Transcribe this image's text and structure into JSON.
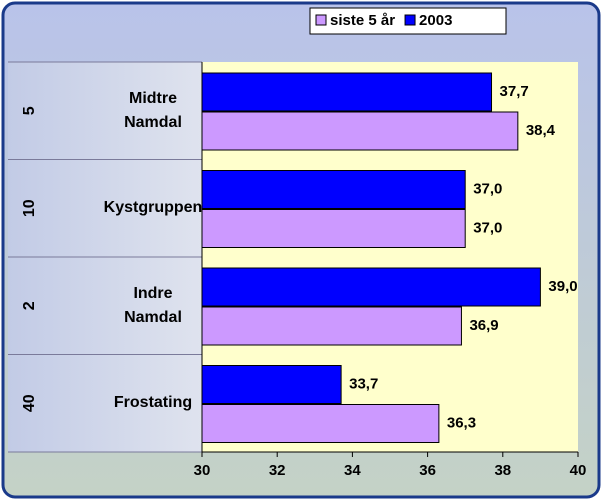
{
  "chart_data": {
    "type": "bar",
    "orientation": "horizontal",
    "categories": [
      "Midtre\nNamdal",
      "Kystgruppen",
      "Indre\nNamdal",
      "Frostating"
    ],
    "rank_labels": [
      "5",
      "10",
      "2",
      "40"
    ],
    "series": [
      {
        "name": "siste 5 år",
        "color": "#cc99ff",
        "values": [
          38.4,
          37.0,
          36.9,
          36.3
        ],
        "value_labels": [
          "38,4",
          "37,0",
          "36,9",
          "36,3"
        ]
      },
      {
        "name": "2003",
        "color": "#0000ff",
        "values": [
          37.7,
          37.0,
          39.0,
          33.7
        ],
        "value_labels": [
          "37,7",
          "37,0",
          "39,0",
          "33,7"
        ]
      }
    ],
    "xlim": [
      30,
      40
    ],
    "xticks": [
      30,
      32,
      34,
      36,
      38,
      40
    ],
    "legend": "top"
  }
}
